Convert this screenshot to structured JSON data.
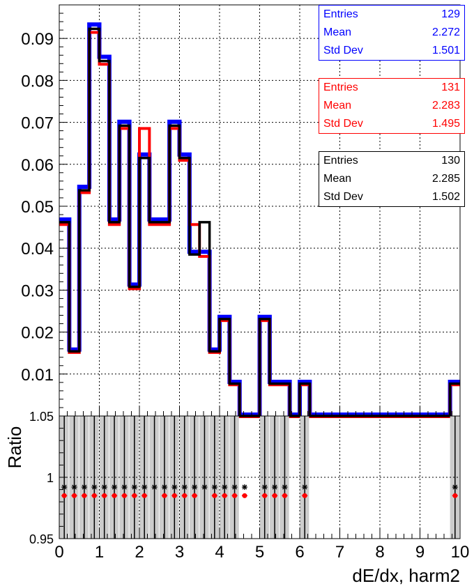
{
  "chart_data": [
    {
      "type": "histogram",
      "xlim": [
        0,
        10
      ],
      "ylim": [
        0,
        0.098
      ],
      "bin_edges_start": 0,
      "bin_width": 0.25,
      "yticks": [
        "0.01",
        "0.02",
        "0.03",
        "0.04",
        "0.05",
        "0.06",
        "0.07",
        "0.08",
        "0.09"
      ],
      "ytick_values": [
        0.01,
        0.02,
        0.03,
        0.04,
        0.05,
        0.06,
        0.07,
        0.08,
        0.09
      ],
      "grid": true,
      "series": [
        {
          "color": "#0000ff",
          "values": [
            0.0465,
            0.0155,
            0.0543,
            0.093,
            0.0853,
            0.0465,
            0.0698,
            0.031,
            0.062,
            0.0465,
            0.0465,
            0.0698,
            0.062,
            0.0388,
            0.0388,
            0.0155,
            0.0233,
            0.0078,
            0,
            0,
            0.0233,
            0.0078,
            0.0078,
            0,
            0.0078,
            0,
            0,
            0,
            0,
            0,
            0,
            0,
            0,
            0,
            0,
            0,
            0,
            0,
            0,
            0.0078
          ],
          "stats": {
            "entries": "129",
            "mean": "2.272",
            "std": "1.501"
          }
        },
        {
          "color": "#ff0000",
          "values": [
            0.0458,
            0.0153,
            0.0534,
            0.0916,
            0.084,
            0.0458,
            0.0687,
            0.0305,
            0.0687,
            0.0458,
            0.0458,
            0.0687,
            0.0611,
            0.0458,
            0.0382,
            0.0153,
            0.0229,
            0.0076,
            0,
            0,
            0.0229,
            0.0076,
            0.0076,
            0,
            0.0076,
            0,
            0,
            0,
            0,
            0,
            0,
            0,
            0,
            0,
            0,
            0,
            0,
            0,
            0,
            0.0076
          ],
          "stats": {
            "entries": "131",
            "mean": "2.283",
            "std": "1.495"
          }
        },
        {
          "color": "#000000",
          "values": [
            0.0462,
            0.0154,
            0.0538,
            0.0923,
            0.0846,
            0.0462,
            0.0692,
            0.0308,
            0.0615,
            0.0462,
            0.0462,
            0.0692,
            0.0615,
            0.0385,
            0.0462,
            0.0154,
            0.0231,
            0.0077,
            0,
            0,
            0.0231,
            0.0077,
            0.0077,
            0,
            0.0077,
            0,
            0,
            0,
            0,
            0,
            0,
            0,
            0,
            0,
            0,
            0,
            0,
            0,
            0,
            0.0077
          ],
          "stats": {
            "entries": "130",
            "mean": "2.285",
            "std": "1.502"
          }
        }
      ],
      "stat_labels": {
        "entries": "Entries",
        "mean": "Mean",
        "std": "Std Dev"
      }
    },
    {
      "type": "scatter",
      "ylabel": "Ratio",
      "xlabel": "dE/dx, harm2",
      "xlim": [
        0,
        10
      ],
      "ylim": [
        0.95,
        1.05
      ],
      "yticks": [
        "0.95",
        "1",
        "1.05"
      ],
      "ytick_values": [
        0.95,
        1.0,
        1.05
      ],
      "xticks": [
        "0",
        "1",
        "2",
        "3",
        "4",
        "5",
        "6",
        "7",
        "8",
        "9",
        "10"
      ],
      "xtick_values": [
        0,
        1,
        2,
        3,
        4,
        5,
        6,
        7,
        8,
        9,
        10
      ],
      "grid": true,
      "band_color": "#cccccc",
      "band_bins": [
        0,
        1,
        2,
        3,
        4,
        5,
        6,
        7,
        8,
        9,
        10,
        11,
        12,
        13,
        14,
        15,
        16,
        17,
        20,
        21,
        22,
        24,
        39
      ],
      "series": [
        {
          "color": "#ff0000",
          "marker": "circle",
          "x": [
            0.125,
            0.375,
            0.625,
            0.875,
            1.125,
            1.375,
            1.625,
            1.875,
            2.125,
            2.625,
            2.875,
            3.125,
            3.375,
            3.875,
            4.125,
            4.375,
            4.625,
            5.125,
            5.375,
            5.625,
            6.125,
            9.875
          ],
          "y": [
            0.985,
            0.985,
            0.985,
            0.985,
            0.985,
            0.985,
            0.985,
            0.985,
            0.985,
            0.985,
            0.985,
            0.985,
            0.985,
            0.985,
            0.985,
            0.985,
            0.985,
            0.985,
            0.985,
            0.985,
            0.985,
            0.985
          ]
        },
        {
          "color": "#000000",
          "marker": "star",
          "x": [
            0.125,
            0.375,
            0.625,
            0.875,
            1.125,
            1.375,
            1.625,
            1.875,
            2.125,
            2.375,
            2.625,
            2.875,
            3.125,
            3.375,
            3.625,
            3.875,
            4.125,
            4.375,
            4.625,
            5.125,
            5.375,
            5.625,
            6.125,
            9.875
          ],
          "y": [
            0.992,
            0.992,
            0.992,
            0.992,
            0.992,
            0.992,
            0.992,
            0.992,
            0.992,
            0.992,
            0.992,
            0.992,
            0.992,
            0.992,
            0.992,
            0.992,
            0.992,
            0.992,
            0.992,
            0.992,
            0.992,
            0.992,
            0.992,
            0.992
          ]
        }
      ]
    }
  ]
}
